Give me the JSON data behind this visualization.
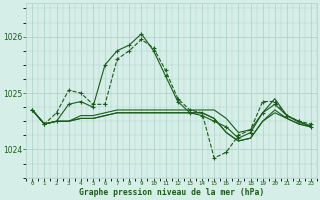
{
  "title": "Graphe pression niveau de la mer (hPa)",
  "bg_color": "#d5eee8",
  "grid_color": "#b0d4c8",
  "line_color": "#1a5c1a",
  "ylim": [
    1023.5,
    1026.6
  ],
  "yticks": [
    1024,
    1025,
    1026
  ],
  "hours": [
    0,
    1,
    2,
    3,
    4,
    5,
    6,
    7,
    8,
    9,
    10,
    11,
    12,
    13,
    14,
    15,
    16,
    17,
    18,
    19,
    20,
    21,
    22,
    23
  ],
  "series": [
    {
      "values": [
        1024.7,
        1024.45,
        1024.5,
        1024.8,
        1024.85,
        1024.75,
        1025.5,
        1025.75,
        1025.85,
        1026.05,
        1025.75,
        1025.3,
        1024.85,
        1024.65,
        1024.6,
        1024.5,
        1024.4,
        1024.2,
        1024.3,
        1024.65,
        1024.8,
        1024.6,
        1024.5,
        1024.4
      ],
      "marker": true,
      "linestyle": "-"
    },
    {
      "values": [
        1024.7,
        1024.45,
        1024.5,
        1024.5,
        1024.55,
        1024.55,
        1024.6,
        1024.65,
        1024.65,
        1024.65,
        1024.65,
        1024.65,
        1024.65,
        1024.65,
        1024.65,
        1024.55,
        1024.3,
        1024.15,
        1024.2,
        1024.5,
        1024.65,
        1024.55,
        1024.45,
        1024.4
      ],
      "marker": false,
      "linestyle": "-"
    },
    {
      "values": [
        1024.7,
        1024.45,
        1024.5,
        1024.5,
        1024.55,
        1024.55,
        1024.6,
        1024.65,
        1024.65,
        1024.65,
        1024.65,
        1024.65,
        1024.65,
        1024.65,
        1024.65,
        1024.55,
        1024.3,
        1024.15,
        1024.2,
        1024.5,
        1024.7,
        1024.55,
        1024.45,
        1024.4
      ],
      "marker": false,
      "linestyle": "-"
    },
    {
      "values": [
        1024.7,
        1024.45,
        1024.5,
        1024.5,
        1024.6,
        1024.6,
        1024.65,
        1024.7,
        1024.7,
        1024.7,
        1024.7,
        1024.7,
        1024.7,
        1024.7,
        1024.7,
        1024.7,
        1024.55,
        1024.3,
        1024.35,
        1024.65,
        1024.9,
        1024.6,
        1024.48,
        1024.42
      ],
      "marker": false,
      "linestyle": "-"
    },
    {
      "values": [
        1024.7,
        1024.45,
        1024.65,
        1025.05,
        1025.0,
        1024.8,
        1024.8,
        1025.6,
        1025.75,
        1025.95,
        1025.8,
        1025.4,
        1024.9,
        1024.7,
        1024.65,
        1023.85,
        1023.95,
        1024.25,
        1024.35,
        1024.85,
        1024.85,
        1024.6,
        1024.5,
        1024.45
      ],
      "marker": true,
      "linestyle": "--"
    }
  ]
}
